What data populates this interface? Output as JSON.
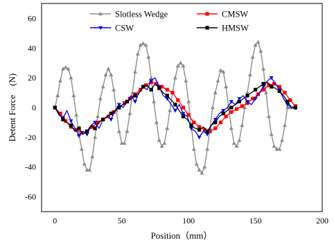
{
  "chart_data": {
    "type": "line",
    "title": "",
    "xlabel": "Position（mm）",
    "ylabel": "Detent Force　(N)",
    "xlim": [
      -10,
      200
    ],
    "ylim": [
      -70,
      70
    ],
    "xticks": [
      0,
      50,
      100,
      150,
      200
    ],
    "yticks": [
      -60,
      -40,
      -20,
      0,
      20,
      40,
      60
    ],
    "grid": false,
    "legend_position": "top-center",
    "series": [
      {
        "name": "Slotless Wedge",
        "color": "#8c8c8c",
        "marker": "triangle",
        "x": [
          0,
          2,
          4,
          6,
          8,
          10,
          12,
          14,
          16,
          18,
          20,
          22,
          24,
          26,
          28,
          30,
          32,
          34,
          36,
          38,
          40,
          42,
          44,
          46,
          48,
          50,
          52,
          54,
          56,
          58,
          60,
          62,
          64,
          66,
          68,
          70,
          72,
          74,
          76,
          78,
          80,
          82,
          84,
          86,
          88,
          90,
          92,
          94,
          96,
          98,
          100,
          102,
          104,
          106,
          108,
          110,
          112,
          114,
          116,
          118,
          120,
          122,
          124,
          126,
          128,
          130,
          132,
          134,
          136,
          138,
          140,
          142,
          144,
          146,
          148,
          150,
          152,
          154,
          156,
          158,
          160,
          162,
          164,
          166,
          168,
          170,
          172,
          174,
          176,
          178,
          180
        ],
        "y": [
          0,
          8,
          18,
          26,
          27,
          26,
          20,
          8,
          -5,
          -18,
          -28,
          -38,
          -42,
          -42,
          -33,
          -20,
          -6,
          6,
          14,
          22,
          26,
          22,
          12,
          -2,
          -16,
          -24,
          -24,
          -16,
          -4,
          10,
          24,
          36,
          42,
          43,
          42,
          34,
          20,
          4,
          -10,
          -22,
          -26,
          -24,
          -14,
          -2,
          10,
          20,
          28,
          30,
          28,
          18,
          4,
          -12,
          -28,
          -38,
          -42,
          -44,
          -40,
          -28,
          -14,
          0,
          10,
          18,
          25,
          24,
          14,
          0,
          -14,
          -24,
          -26,
          -22,
          -12,
          0,
          10,
          22,
          34,
          42,
          44,
          38,
          26,
          10,
          -6,
          -18,
          -26,
          -28,
          -28,
          -22,
          -12,
          0,
          0,
          0,
          0
        ]
      },
      {
        "name": "CMSW",
        "color": "#ff0000",
        "marker": "square",
        "x": [
          0,
          4,
          8,
          12,
          16,
          20,
          24,
          28,
          32,
          36,
          40,
          44,
          48,
          52,
          56,
          60,
          64,
          68,
          72,
          76,
          80,
          84,
          88,
          92,
          96,
          100,
          104,
          108,
          112,
          116,
          120,
          124,
          128,
          132,
          136,
          140,
          144,
          148,
          152,
          156,
          160,
          164,
          168,
          172,
          176,
          180
        ],
        "y": [
          0,
          -4,
          -9,
          -13,
          -15,
          -17,
          -16,
          -13,
          -10,
          -8,
          -6,
          -3,
          0,
          3,
          6,
          9,
          12,
          15,
          17,
          16,
          14,
          12,
          10,
          5,
          0,
          -5,
          -10,
          -13,
          -15,
          -16,
          -14,
          -10,
          -6,
          -3,
          -1,
          1,
          3,
          6,
          9,
          12,
          15,
          16,
          14,
          10,
          5,
          1
        ]
      },
      {
        "name": "CSW",
        "color": "#0000ff",
        "marker": "triangle-down",
        "x": [
          0,
          3,
          6,
          9,
          12,
          15,
          18,
          21,
          24,
          27,
          30,
          33,
          36,
          39,
          42,
          45,
          48,
          51,
          54,
          57,
          60,
          63,
          66,
          69,
          72,
          75,
          78,
          81,
          84,
          87,
          90,
          93,
          96,
          99,
          102,
          105,
          108,
          111,
          114,
          117,
          120,
          123,
          126,
          129,
          132,
          135,
          138,
          141,
          144,
          147,
          150,
          153,
          156,
          159,
          162,
          165,
          168,
          171,
          174,
          177,
          180
        ],
        "y": [
          0,
          -5,
          -7,
          -2,
          -9,
          -14,
          -19,
          -16,
          -18,
          -12,
          -10,
          -14,
          -8,
          -6,
          -8,
          -2,
          2,
          0,
          4,
          8,
          4,
          10,
          14,
          12,
          18,
          20,
          14,
          8,
          6,
          2,
          -2,
          2,
          -4,
          -6,
          -14,
          -16,
          -20,
          -16,
          -18,
          -12,
          -8,
          -4,
          -2,
          0,
          4,
          2,
          6,
          8,
          4,
          2,
          6,
          10,
          14,
          18,
          20,
          16,
          12,
          6,
          2,
          0,
          0
        ]
      },
      {
        "name": "HMSW",
        "color": "#000000",
        "marker": "square",
        "x": [
          0,
          3,
          6,
          9,
          12,
          15,
          18,
          21,
          24,
          27,
          30,
          33,
          36,
          39,
          42,
          45,
          48,
          51,
          54,
          57,
          60,
          63,
          66,
          69,
          72,
          75,
          78,
          81,
          84,
          87,
          90,
          93,
          96,
          99,
          102,
          105,
          108,
          111,
          114,
          117,
          120,
          123,
          126,
          129,
          132,
          135,
          138,
          141,
          144,
          147,
          150,
          153,
          156,
          159,
          162,
          165,
          168,
          171,
          174,
          177,
          180
        ],
        "y": [
          0,
          -4,
          -8,
          -10,
          -12,
          -16,
          -14,
          -18,
          -16,
          -12,
          -14,
          -10,
          -8,
          -6,
          -4,
          -2,
          0,
          2,
          4,
          6,
          8,
          10,
          14,
          15,
          12,
          16,
          13,
          10,
          8,
          5,
          2,
          -2,
          -6,
          -8,
          -12,
          -14,
          -15,
          -13,
          -16,
          -12,
          -10,
          -6,
          -4,
          -2,
          0,
          2,
          4,
          6,
          8,
          10,
          12,
          14,
          16,
          17,
          14,
          13,
          11,
          8,
          4,
          0,
          0
        ]
      }
    ]
  }
}
